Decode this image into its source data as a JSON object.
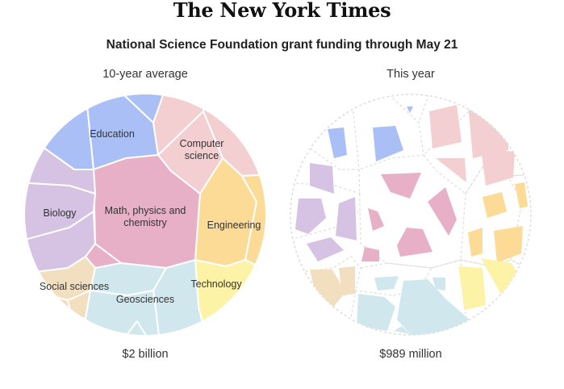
{
  "masthead": "The New York Times",
  "chart_data": {
    "type": "voronoi-treemap",
    "title": "National Science Foundation grant funding through May 21",
    "panels": [
      {
        "label": "10-year average",
        "total": "$2 billion"
      },
      {
        "label": "This year",
        "total": "$989 million"
      }
    ],
    "categories": [
      {
        "name": "Education",
        "color": "#a9bff5"
      },
      {
        "name": "Computer science",
        "color": "#f4cfd2"
      },
      {
        "name": "Math, physics and chemistry",
        "color": "#e8b0c6"
      },
      {
        "name": "Engineering",
        "color": "#fcdb96"
      },
      {
        "name": "Biology",
        "color": "#d6c3e3"
      },
      {
        "name": "Technology",
        "color": "#fdf3a6"
      },
      {
        "name": "Geosciences",
        "color": "#d0e7ee"
      },
      {
        "name": "Social sciences",
        "color": "#f1dfbf"
      }
    ]
  }
}
